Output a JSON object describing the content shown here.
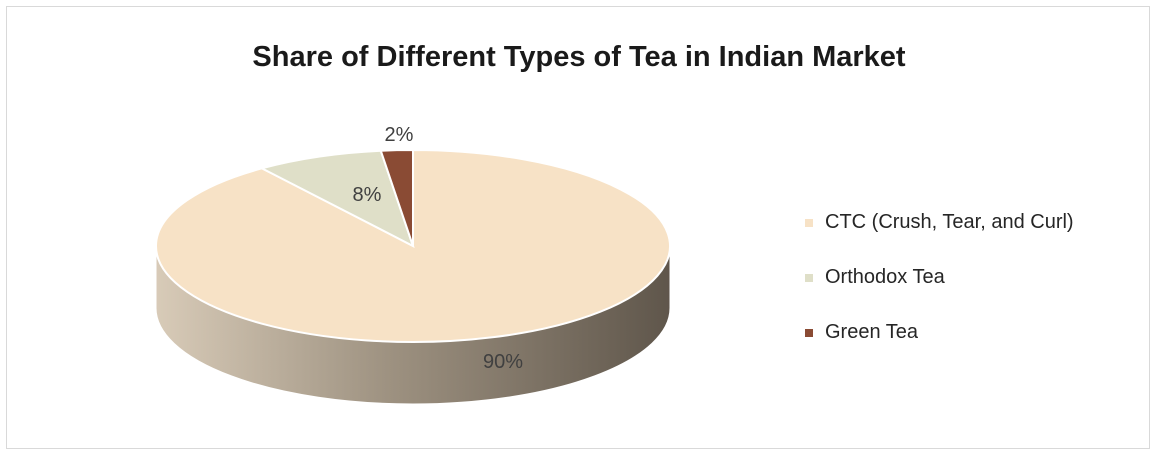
{
  "chart_data": {
    "type": "pie",
    "title": "Share of Different Types of Tea in Indian Market",
    "categories": [
      "CTC (Crush, Tear, and Curl)",
      "Orthodox Tea",
      "Green Tea"
    ],
    "values": [
      90,
      8,
      2
    ],
    "data_labels": [
      "90%",
      "8%",
      "2%"
    ],
    "colors": [
      "#f7e2c6",
      "#dfdfc8",
      "#8a4b34"
    ],
    "side_colors": [
      "#b9ab98",
      "#8b8a74",
      "#5e2f20"
    ],
    "legend_position": "right",
    "three_d": true
  }
}
